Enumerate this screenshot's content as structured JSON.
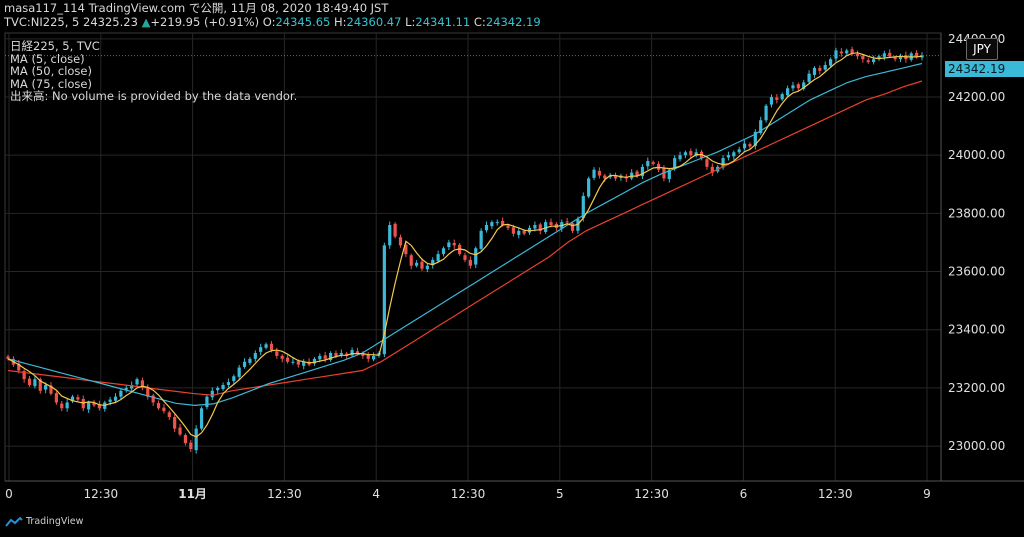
{
  "header": {
    "line1": "masa117_114 TradingView.com で公開, 11月 08, 2020 18:49:40 JST",
    "symbol": "TVC:NI225, 5",
    "last": "24325.23",
    "arrow": "▲",
    "change": "+219.95 (+0.91%)",
    "o_label": "O:",
    "o_value": "24345.65",
    "h_label": "H:",
    "h_value": "24360.47",
    "l_label": "L:",
    "l_value": "24341.11",
    "c_label": "C:",
    "c_value": "24342.19"
  },
  "legend": [
    "日経225, 5, TVC",
    "MA (5, close)",
    "MA (50, close)",
    "MA (75, close)",
    "出来高: No volume is provided by the data vendor."
  ],
  "currency": "JPY",
  "current_price_label": "24342.19",
  "watermark": "TradingView",
  "colors": {
    "up": "#26a69a",
    "down": "#ef5350",
    "ma5": "#f2c94c",
    "ma50": "#3bb9d8",
    "ma75": "#e8412d",
    "bg": "#000000",
    "grid": "#262626"
  },
  "chart_data": {
    "type": "candlestick",
    "ylim": [
      22880,
      24420
    ],
    "y_ticks": [
      23000,
      23200,
      23400,
      23600,
      23800,
      24000,
      24200,
      24400
    ],
    "y_tick_labels": [
      "23000.00",
      "23200.00",
      "23400.00",
      "23600.00",
      "23800.00",
      "24000.00",
      "24200.00",
      "24400.00"
    ],
    "x_ticks": [
      "0",
      "12:30",
      "11月",
      "12:30",
      "4",
      "12:30",
      "5",
      "12:30",
      "6",
      "12:30",
      "9"
    ],
    "x_tick_bold": [
      false,
      false,
      true,
      false,
      false,
      false,
      false,
      false,
      false,
      false,
      false
    ],
    "close_series": [
      23300,
      23280,
      23260,
      23230,
      23210,
      23230,
      23190,
      23210,
      23180,
      23150,
      23130,
      23150,
      23170,
      23160,
      23130,
      23150,
      23140,
      23130,
      23150,
      23160,
      23170,
      23190,
      23200,
      23210,
      23230,
      23200,
      23170,
      23150,
      23130,
      23120,
      23100,
      23060,
      23040,
      23010,
      22990,
      23060,
      23130,
      23170,
      23190,
      23200,
      23210,
      23220,
      23240,
      23270,
      23290,
      23300,
      23320,
      23340,
      23350,
      23330,
      23310,
      23300,
      23290,
      23290,
      23280,
      23290,
      23280,
      23300,
      23310,
      23300,
      23320,
      23310,
      23320,
      23310,
      23330,
      23320,
      23310,
      23300,
      23310,
      23320,
      23690,
      23760,
      23720,
      23690,
      23660,
      23620,
      23630,
      23610,
      23620,
      23640,
      23660,
      23680,
      23700,
      23690,
      23660,
      23640,
      23620,
      23680,
      23740,
      23760,
      23770,
      23770,
      23760,
      23750,
      23730,
      23740,
      23730,
      23750,
      23760,
      23740,
      23770,
      23760,
      23750,
      23770,
      23770,
      23740,
      23780,
      23860,
      23920,
      23950,
      23930,
      23920,
      23930,
      23920,
      23930,
      23920,
      23940,
      23930,
      23960,
      23980,
      23970,
      23950,
      23920,
      23950,
      23990,
      24000,
      24010,
      24000,
      24010,
      23990,
      23960,
      23940,
      23960,
      23990,
      24000,
      24010,
      24020,
      24040,
      24030,
      24080,
      24120,
      24170,
      24200,
      24190,
      24210,
      24230,
      24240,
      24230,
      24250,
      24280,
      24300,
      24290,
      24310,
      24330,
      24360,
      24350,
      24360,
      24350,
      24340,
      24330,
      24320,
      24330,
      24340,
      24350,
      24340,
      24330,
      24340,
      24330,
      24350,
      24340,
      24342.19
    ],
    "ma50_series": [
      23300,
      23283,
      23266,
      23249,
      23232,
      23215,
      23198,
      23181,
      23164,
      23147,
      23140,
      23145,
      23165,
      23190,
      23215,
      23235,
      23255,
      23275,
      23295,
      23320,
      23360,
      23400,
      23440,
      23480,
      23520,
      23560,
      23600,
      23640,
      23680,
      23720,
      23760,
      23800,
      23835,
      23870,
      23905,
      23935,
      23960,
      23985,
      24010,
      24040,
      24070,
      24110,
      24150,
      24190,
      24220,
      24250,
      24270,
      24285,
      24300,
      24315
    ],
    "ma75_series": [
      23260,
      23252,
      23244,
      23236,
      23228,
      23220,
      23212,
      23204,
      23196,
      23188,
      23180,
      23175,
      23190,
      23200,
      23210,
      23220,
      23230,
      23240,
      23250,
      23260,
      23290,
      23330,
      23370,
      23410,
      23450,
      23490,
      23530,
      23570,
      23610,
      23650,
      23700,
      23740,
      23770,
      23800,
      23830,
      23860,
      23890,
      23920,
      23950,
      23980,
      24010,
      24040,
      24070,
      24100,
      24130,
      24160,
      24190,
      24210,
      24235,
      24255
    ]
  }
}
